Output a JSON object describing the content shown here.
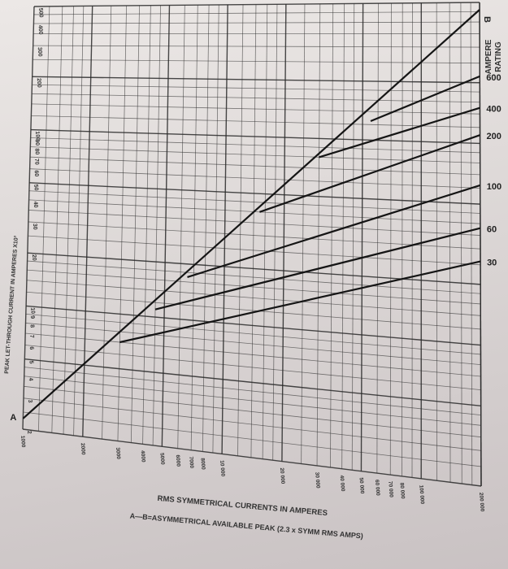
{
  "chart_data": {
    "type": "line",
    "title": "",
    "xlabel": "RMS SYMMETRICAL CURRENTS IN AMPERES",
    "xlabel2": "A—B=ASYMMETRICAL AVAILABLE PEAK (2.3 x SYMM RMS AMPS)",
    "ylabel": "PEAK LET-THROUGH CURRENT IN AMPERES X10³",
    "legend_title": "AMPERE RATING",
    "x_scale": "log",
    "y_scale": "log",
    "xlim": [
      1000,
      200000
    ],
    "ylim": [
      2,
      500
    ],
    "grid": true,
    "x_tick_labels": [
      "1000",
      "2000",
      "3000",
      "4000",
      "5000",
      "6000",
      "7000",
      "8000",
      "10 000",
      "20 000",
      "30 000",
      "40 000",
      "50 000",
      "60 000",
      "70 000",
      "80 000",
      "100 000",
      "200 000"
    ],
    "y_tick_labels": [
      "2",
      "3",
      "4",
      "5",
      "6",
      "7",
      "8",
      "9",
      "10",
      "20",
      "30",
      "40",
      "50",
      "60",
      "70",
      "80",
      "90",
      "100",
      "200",
      "300",
      "400",
      "500"
    ],
    "curve_end_labels": [
      "A",
      "B"
    ],
    "series": [
      {
        "name": "A-B",
        "x": [
          1000,
          200000
        ],
        "y": [
          2.3,
          460
        ]
      },
      {
        "name": "600",
        "x": [
          55000,
          200000
        ],
        "y": [
          125,
          215
        ]
      },
      {
        "name": "400",
        "x": [
          30000,
          200000
        ],
        "y": [
          80,
          150
        ]
      },
      {
        "name": "200",
        "x": [
          15000,
          200000
        ],
        "y": [
          40,
          110
        ]
      },
      {
        "name": "100",
        "x": [
          6500,
          200000
        ],
        "y": [
          17,
          62
        ]
      },
      {
        "name": "60",
        "x": [
          4500,
          200000
        ],
        "y": [
          11,
          38
        ]
      },
      {
        "name": "30",
        "x": [
          3000,
          200000
        ],
        "y": [
          7,
          26
        ]
      }
    ]
  }
}
